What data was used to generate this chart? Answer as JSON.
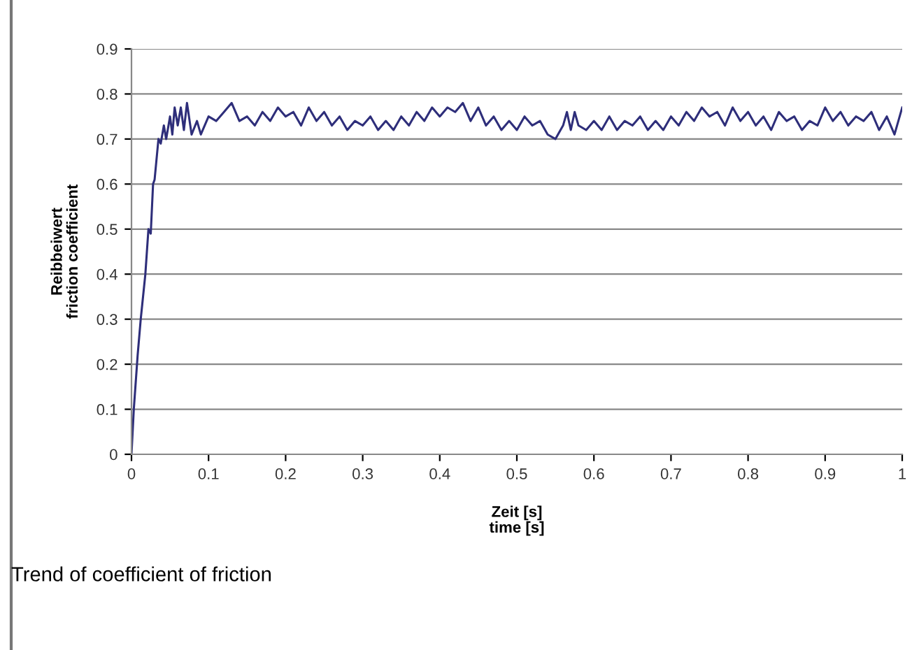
{
  "chart_data": {
    "type": "line",
    "xlabel": "Zeit [s]\ntime [s]",
    "ylabel": "Reibbeiwert\nfriction coefficient",
    "annotations": [
      "Trend of coefficient of friction"
    ],
    "xlim": [
      0,
      1
    ],
    "ylim": [
      0,
      0.9
    ],
    "xticks": [
      0,
      0.1,
      0.2,
      0.3,
      0.4,
      0.5,
      0.6,
      0.7,
      0.8,
      0.9,
      1
    ],
    "yticks": [
      0,
      0.1,
      0.2,
      0.3,
      0.4,
      0.5,
      0.6,
      0.7,
      0.8,
      0.9
    ],
    "grid": "y",
    "marker": "none",
    "line_style": "solid",
    "series": [
      {
        "color": "#2e2e7a",
        "x": [
          0,
          0.003,
          0.008,
          0.012,
          0.018,
          0.022,
          0.025,
          0.028,
          0.03,
          0.035,
          0.038,
          0.042,
          0.045,
          0.05,
          0.053,
          0.056,
          0.06,
          0.064,
          0.068,
          0.072,
          0.078,
          0.085,
          0.09,
          0.1,
          0.11,
          0.12,
          0.13,
          0.14,
          0.15,
          0.16,
          0.17,
          0.18,
          0.19,
          0.2,
          0.21,
          0.22,
          0.23,
          0.24,
          0.25,
          0.26,
          0.27,
          0.28,
          0.29,
          0.3,
          0.31,
          0.32,
          0.33,
          0.34,
          0.35,
          0.36,
          0.37,
          0.38,
          0.39,
          0.4,
          0.41,
          0.42,
          0.43,
          0.44,
          0.45,
          0.46,
          0.47,
          0.48,
          0.49,
          0.5,
          0.51,
          0.52,
          0.53,
          0.54,
          0.55,
          0.56,
          0.565,
          0.57,
          0.575,
          0.58,
          0.59,
          0.6,
          0.61,
          0.62,
          0.63,
          0.64,
          0.65,
          0.66,
          0.67,
          0.68,
          0.69,
          0.7,
          0.71,
          0.72,
          0.73,
          0.74,
          0.75,
          0.76,
          0.77,
          0.78,
          0.79,
          0.8,
          0.81,
          0.82,
          0.83,
          0.84,
          0.85,
          0.86,
          0.87,
          0.88,
          0.89,
          0.9,
          0.91,
          0.92,
          0.93,
          0.94,
          0.95,
          0.96,
          0.97,
          0.98,
          0.99,
          1.0
        ],
        "values": [
          0,
          0.1,
          0.22,
          0.3,
          0.4,
          0.5,
          0.49,
          0.6,
          0.61,
          0.7,
          0.69,
          0.73,
          0.7,
          0.75,
          0.71,
          0.77,
          0.73,
          0.77,
          0.72,
          0.78,
          0.71,
          0.74,
          0.71,
          0.75,
          0.74,
          0.76,
          0.78,
          0.74,
          0.75,
          0.73,
          0.76,
          0.74,
          0.77,
          0.75,
          0.76,
          0.73,
          0.77,
          0.74,
          0.76,
          0.73,
          0.75,
          0.72,
          0.74,
          0.73,
          0.75,
          0.72,
          0.74,
          0.72,
          0.75,
          0.73,
          0.76,
          0.74,
          0.77,
          0.75,
          0.77,
          0.76,
          0.78,
          0.74,
          0.77,
          0.73,
          0.75,
          0.72,
          0.74,
          0.72,
          0.75,
          0.73,
          0.74,
          0.71,
          0.7,
          0.73,
          0.76,
          0.72,
          0.76,
          0.73,
          0.72,
          0.74,
          0.72,
          0.75,
          0.72,
          0.74,
          0.73,
          0.75,
          0.72,
          0.74,
          0.72,
          0.75,
          0.73,
          0.76,
          0.74,
          0.77,
          0.75,
          0.76,
          0.73,
          0.77,
          0.74,
          0.76,
          0.73,
          0.75,
          0.72,
          0.76,
          0.74,
          0.75,
          0.72,
          0.74,
          0.73,
          0.77,
          0.74,
          0.76,
          0.73,
          0.75,
          0.74,
          0.76,
          0.72,
          0.75,
          0.71,
          0.77
        ]
      }
    ]
  }
}
